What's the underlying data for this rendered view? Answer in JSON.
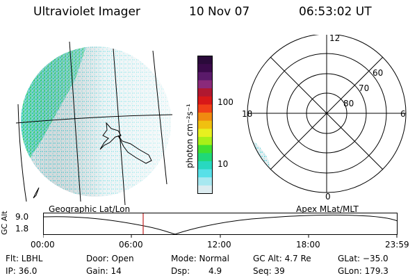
{
  "header": {
    "instrument": "Ultraviolet Imager",
    "date": "10 Nov 07",
    "time": "06:53:02 UT"
  },
  "colorbar": {
    "label": "photon cm⁻²s⁻¹",
    "ticks": [
      "100",
      "10"
    ],
    "colors": [
      "#2a0a3a",
      "#3a0a4a",
      "#5a1a6a",
      "#8a2a7a",
      "#b01830",
      "#d81818",
      "#f04018",
      "#f08a10",
      "#f0c010",
      "#e8f020",
      "#a8f018",
      "#40e030",
      "#20d878",
      "#28d8c0",
      "#58e0e8",
      "#a8e8f0",
      "#dcecf0"
    ]
  },
  "polar": {
    "mlt_labels": [
      "12",
      "18",
      "6",
      "0"
    ],
    "mlat_labels": [
      "60",
      "70",
      "80"
    ]
  },
  "timeline": {
    "left_title": "Geographic Lat/Lon",
    "right_title": "Apex MLat/MLT",
    "axis_title": "GC Alt",
    "ymax": "9.0",
    "ymin": "1.8",
    "xticks": [
      "00:00",
      "06:00",
      "12:00",
      "18:00",
      "23:59"
    ],
    "marker_color": "#c02020"
  },
  "info": {
    "filter": "Flt: LBHL",
    "door": "Door: Open",
    "mode": "Mode: Normal",
    "gc_alt": "GC Alt: 4.7 Re",
    "glat": "GLat: −35.0",
    "ip": "IP: 36.0",
    "gain": "Gain: 14",
    "dsp_label": "Dsp:",
    "dsp_value": "4.9",
    "seq": "Seq: 39",
    "glon": "GLon: 179.3"
  }
}
